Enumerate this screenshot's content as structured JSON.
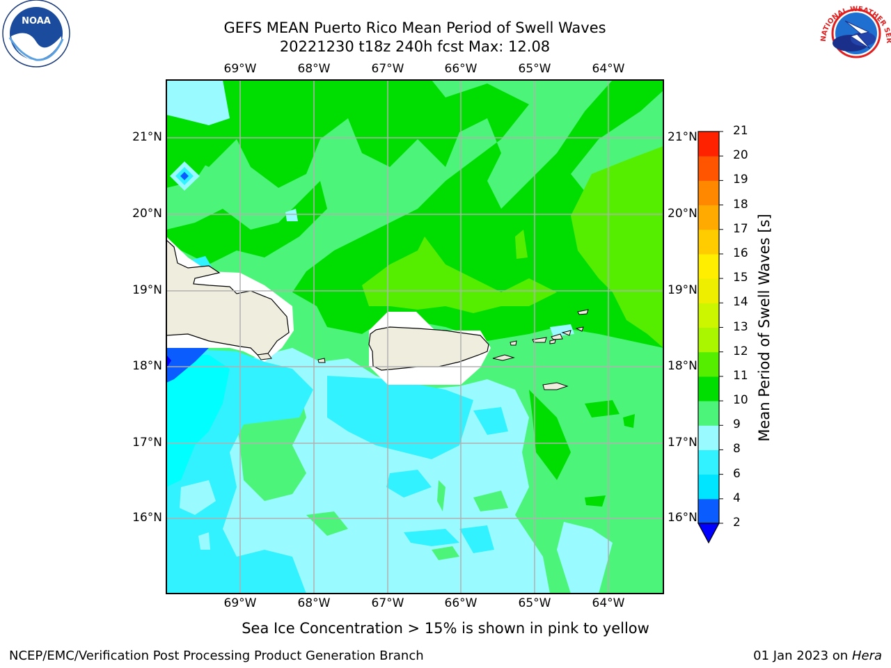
{
  "title_line1": "GEFS MEAN Puerto Rico Mean Period of Swell Waves",
  "title_line2": "20221230 t18z 240h fcst   Max: 12.08",
  "lon_labels": [
    "69°W",
    "68°W",
    "67°W",
    "66°W",
    "65°W",
    "64°W"
  ],
  "lat_labels": [
    "21°N",
    "20°N",
    "19°N",
    "18°N",
    "17°N",
    "16°N"
  ],
  "colorbar": {
    "label": "Mean Period of Swell Waves [s]",
    "levels": [
      "2",
      "4",
      "6",
      "8",
      "9",
      "10",
      "11",
      "12",
      "13",
      "14",
      "15",
      "16",
      "17",
      "18",
      "19",
      "20",
      "21"
    ],
    "colors": [
      "#0a5cff",
      "#00e5ff",
      "#33f2ff",
      "#99fbff",
      "#4cf57a",
      "#00dd00",
      "#55ee00",
      "#aaf500",
      "#ccf500",
      "#eeee00",
      "#ffee00",
      "#ffcc00",
      "#ffaa00",
      "#ff8800",
      "#ff5500",
      "#ff2200"
    ],
    "extend_color": "#0000ff"
  },
  "colors": {
    "land": "#efedde",
    "land_mask": "#ffffff",
    "grid": "#b0b0b0"
  },
  "logos": {
    "noaa": "NOAA",
    "nws": "NATIONAL WEATHER SERVICE"
  },
  "note": "Sea Ice Concentration > 15% is shown in pink to yellow",
  "footer_left": "NCEP/EMC/Verification Post Processing Product Generation Branch",
  "footer_date": "01 Jan 2023 on ",
  "footer_host": "Hera"
}
